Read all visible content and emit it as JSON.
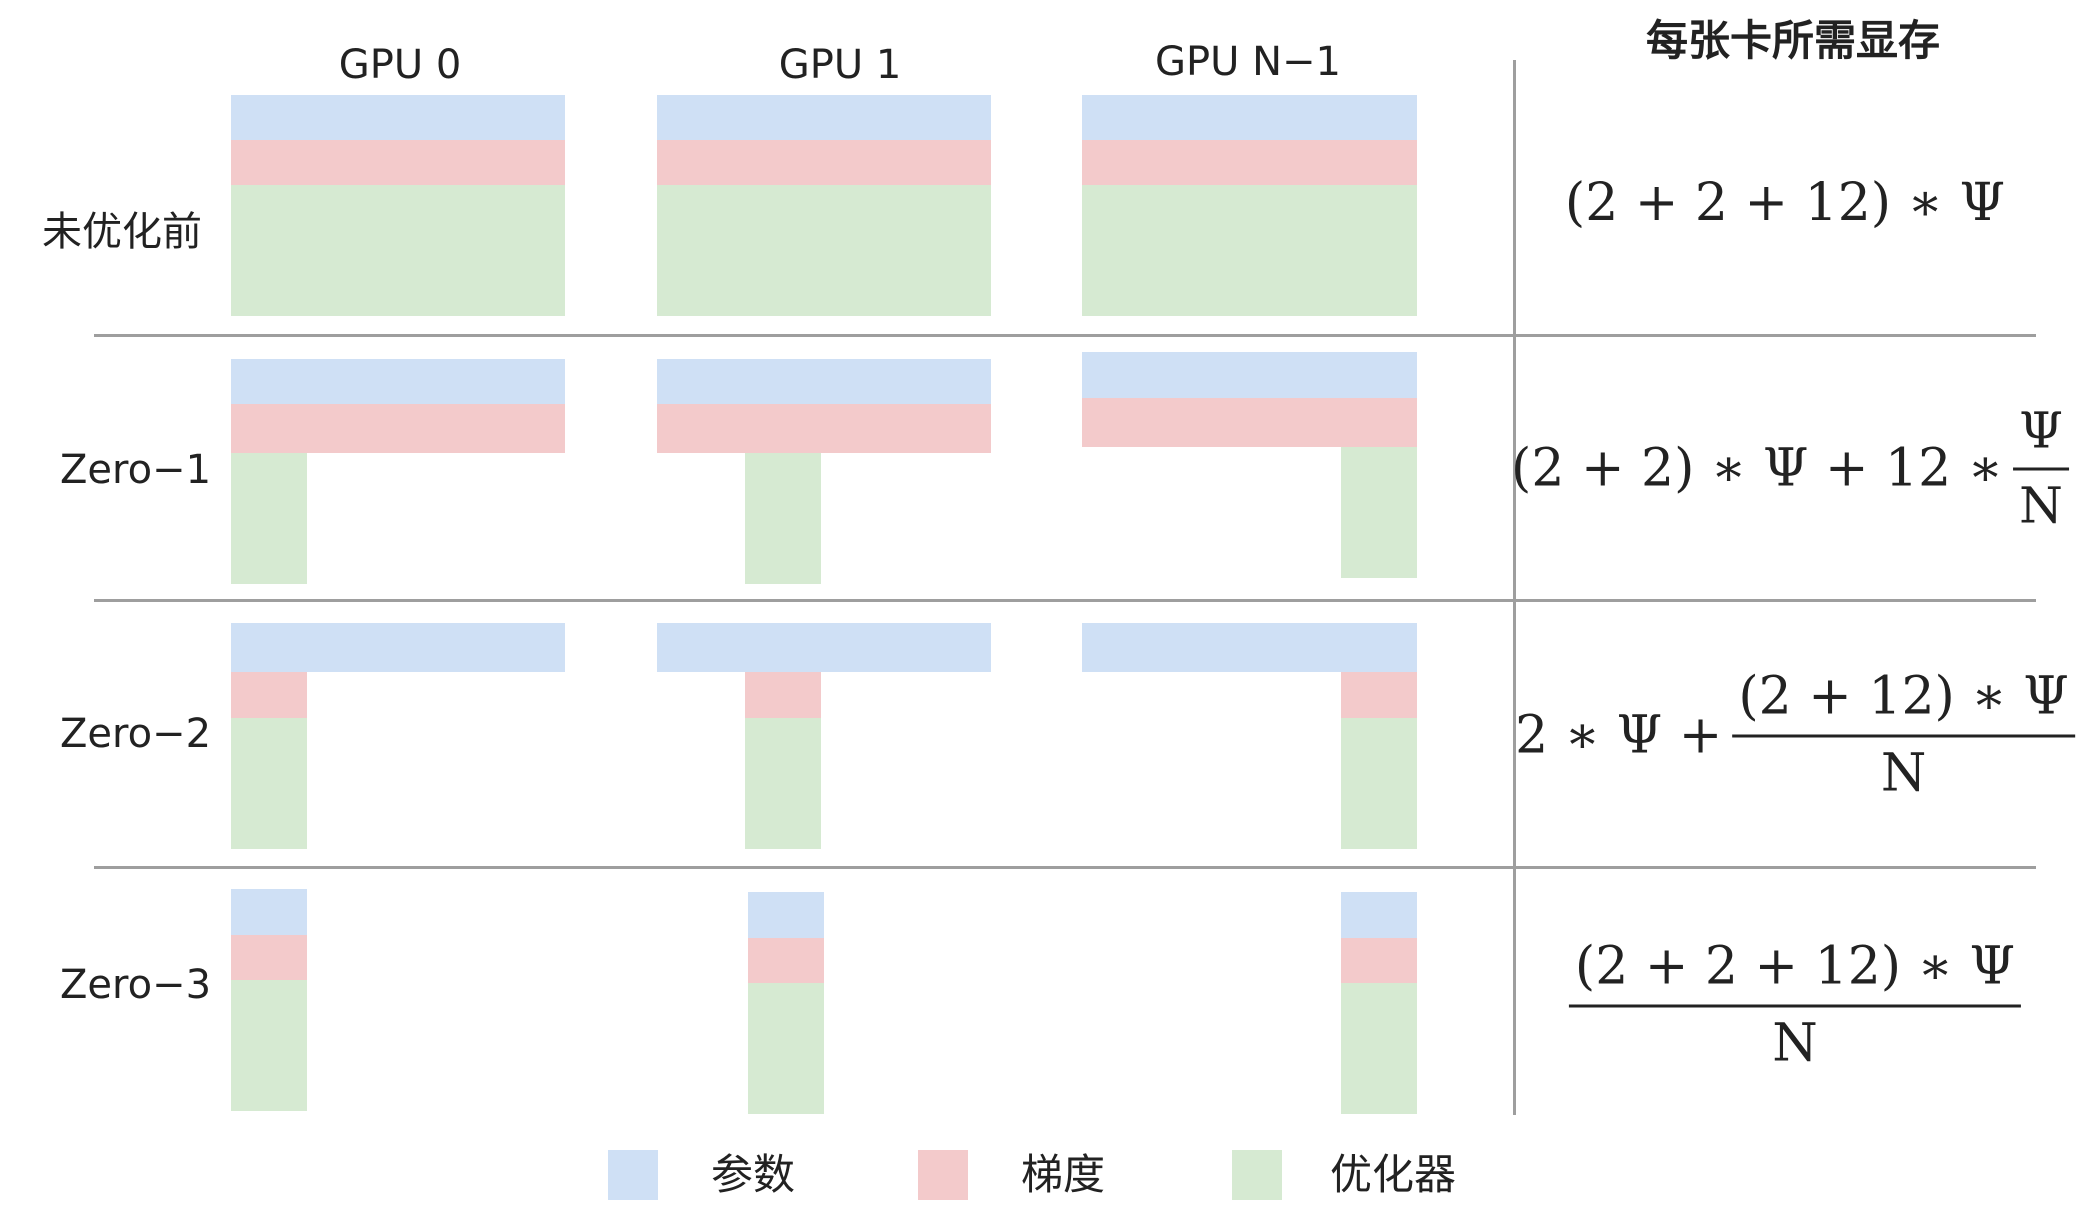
{
  "columns": [
    "GPU 0",
    "GPU 1",
    "GPU N−1"
  ],
  "memory_header": "每张卡所需显存",
  "rows": [
    {
      "label": "未优化前",
      "formula": {
        "lead": "(2 + 2 + 12) ∗ Ψ",
        "num": "",
        "den": ""
      }
    },
    {
      "label": "Zero−1",
      "formula": {
        "lead": "(2 + 2) ∗ Ψ + 12 ∗",
        "num": "Ψ",
        "den": "N"
      }
    },
    {
      "label": "Zero−2",
      "formula": {
        "lead": "2 ∗ Ψ +",
        "num": "(2 + 12) ∗ Ψ",
        "den": "N"
      }
    },
    {
      "label": "Zero−3",
      "formula": {
        "lead": "",
        "num": "(2 + 2 + 12) ∗ Ψ",
        "den": "N"
      }
    }
  ],
  "legend": [
    {
      "label": "参数",
      "color": "#cfe0f5"
    },
    {
      "label": "梯度",
      "color": "#f3cacb"
    },
    {
      "label": "优化器",
      "color": "#d6ead2"
    }
  ]
}
